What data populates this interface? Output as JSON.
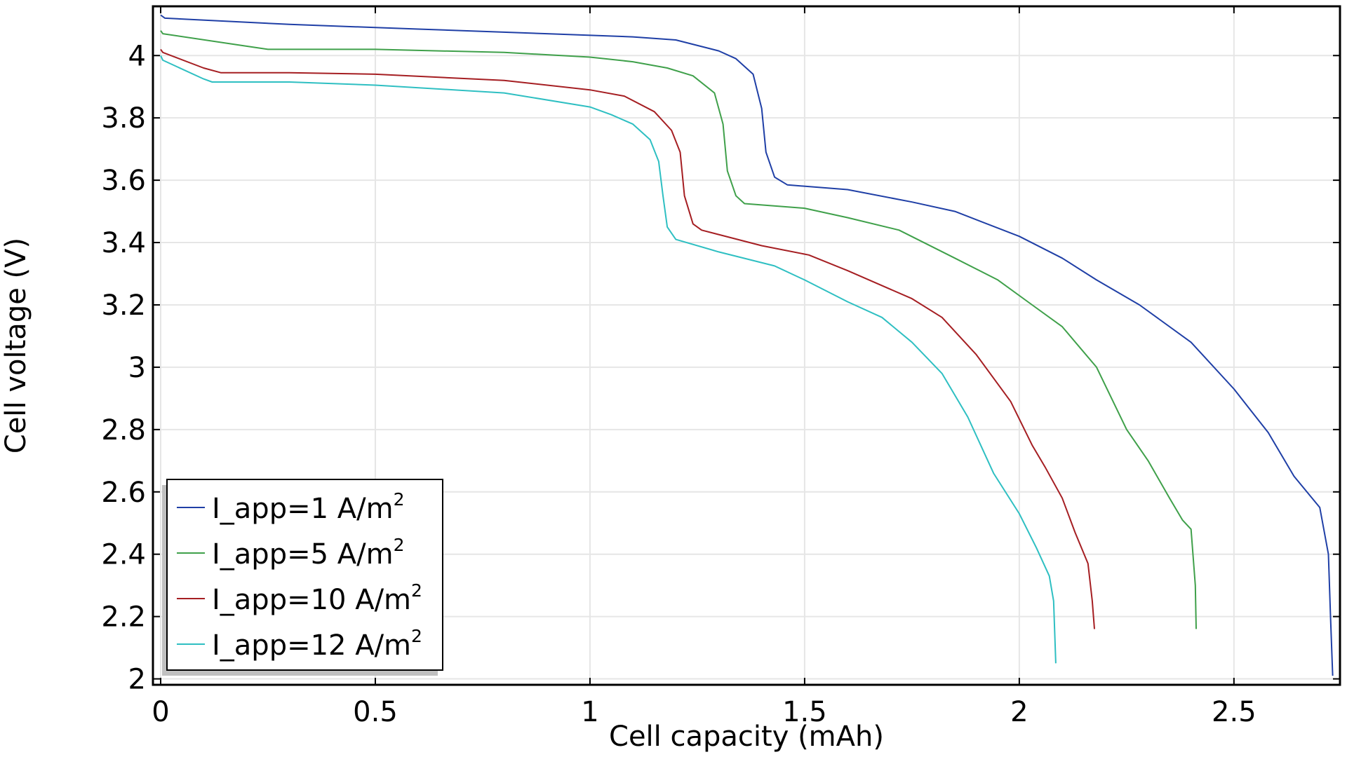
{
  "chart_data": {
    "type": "line",
    "title": "",
    "xlabel": "Cell capacity (mAh)",
    "ylabel": "Cell voltage (V)",
    "xlim": [
      -0.018,
      2.747
    ],
    "ylim": [
      1.981,
      4.158
    ],
    "xticks": [
      0,
      0.5,
      1,
      1.5,
      2,
      2.5
    ],
    "xtick_labels": [
      "0",
      "0.5",
      "1",
      "1.5",
      "2",
      "2.5"
    ],
    "yticks": [
      2,
      2.2,
      2.4,
      2.6,
      2.8,
      3,
      3.2,
      3.4,
      3.6,
      3.8,
      4
    ],
    "ytick_labels": [
      "2",
      "2.2",
      "2.4",
      "2.6",
      "2.8",
      "3",
      "3.2",
      "3.4",
      "3.6",
      "3.8",
      "4"
    ],
    "grid": true,
    "legend_position": "bottom-left",
    "series": [
      {
        "name": "I_app=1 A/m",
        "name_sup": "2",
        "color": "#1f3fa6",
        "x": [
          0,
          0.01,
          0.3,
          0.6,
          0.9,
          1.1,
          1.2,
          1.3,
          1.34,
          1.38,
          1.4,
          1.41,
          1.43,
          1.46,
          1.6,
          1.75,
          1.85,
          2.0,
          2.1,
          2.18,
          2.28,
          2.4,
          2.5,
          2.58,
          2.64,
          2.7,
          2.72,
          2.725,
          2.73
        ],
        "y": [
          4.13,
          4.12,
          4.1,
          4.085,
          4.07,
          4.06,
          4.05,
          4.015,
          3.99,
          3.94,
          3.83,
          3.69,
          3.61,
          3.585,
          3.57,
          3.53,
          3.5,
          3.42,
          3.35,
          3.28,
          3.2,
          3.08,
          2.93,
          2.79,
          2.65,
          2.55,
          2.4,
          2.2,
          2.01
        ]
      },
      {
        "name": "I_app=5 A/m",
        "name_sup": "2",
        "color": "#3fa04a",
        "x": [
          0,
          0.005,
          0.2,
          0.25,
          0.5,
          0.8,
          1.0,
          1.1,
          1.18,
          1.24,
          1.29,
          1.31,
          1.32,
          1.34,
          1.36,
          1.5,
          1.6,
          1.72,
          1.85,
          1.95,
          2.03,
          2.1,
          2.18,
          2.25,
          2.3,
          2.35,
          2.38,
          2.4,
          2.41,
          2.412
        ],
        "y": [
          4.08,
          4.07,
          4.03,
          4.02,
          4.02,
          4.01,
          3.995,
          3.98,
          3.96,
          3.935,
          3.88,
          3.78,
          3.63,
          3.55,
          3.525,
          3.51,
          3.48,
          3.44,
          3.35,
          3.28,
          3.2,
          3.13,
          3.0,
          2.8,
          2.7,
          2.58,
          2.51,
          2.48,
          2.3,
          2.16
        ]
      },
      {
        "name": "I_app=10 A/m",
        "name_sup": "2",
        "color": "#a51e22",
        "x": [
          0,
          0.005,
          0.1,
          0.14,
          0.3,
          0.5,
          0.8,
          1.0,
          1.08,
          1.15,
          1.19,
          1.21,
          1.22,
          1.24,
          1.26,
          1.4,
          1.51,
          1.6,
          1.75,
          1.82,
          1.9,
          1.98,
          2.03,
          2.06,
          2.1,
          2.13,
          2.16,
          2.17,
          2.175
        ],
        "y": [
          4.02,
          4.01,
          3.96,
          3.945,
          3.945,
          3.94,
          3.92,
          3.89,
          3.87,
          3.82,
          3.76,
          3.69,
          3.55,
          3.46,
          3.44,
          3.39,
          3.36,
          3.31,
          3.22,
          3.16,
          3.04,
          2.89,
          2.75,
          2.68,
          2.58,
          2.47,
          2.37,
          2.25,
          2.16
        ]
      },
      {
        "name": "I_app=12 A/m",
        "name_sup": "2",
        "color": "#2ebfc2",
        "x": [
          0,
          0.005,
          0.1,
          0.12,
          0.3,
          0.5,
          0.8,
          1.0,
          1.05,
          1.1,
          1.14,
          1.16,
          1.17,
          1.18,
          1.2,
          1.3,
          1.43,
          1.5,
          1.6,
          1.68,
          1.75,
          1.82,
          1.88,
          1.94,
          2.0,
          2.04,
          2.07,
          2.08,
          2.085
        ],
        "y": [
          4.0,
          3.985,
          3.925,
          3.915,
          3.915,
          3.905,
          3.88,
          3.835,
          3.81,
          3.78,
          3.73,
          3.66,
          3.55,
          3.45,
          3.41,
          3.37,
          3.325,
          3.28,
          3.21,
          3.16,
          3.08,
          2.98,
          2.84,
          2.66,
          2.53,
          2.42,
          2.33,
          2.25,
          2.05
        ]
      }
    ]
  }
}
